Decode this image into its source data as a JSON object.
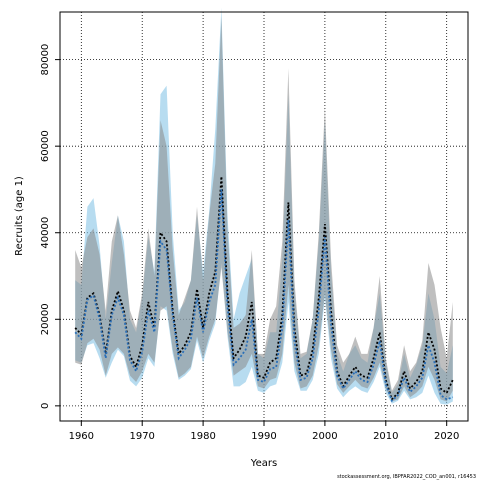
{
  "chart_data": {
    "type": "line",
    "xlabel": "Years",
    "ylabel": "Recruits (age 1)",
    "xlim": [
      1956.5,
      2023.5
    ],
    "ylim": [
      -3500,
      91000
    ],
    "xticks": [
      1960,
      1970,
      1980,
      1990,
      2000,
      2010,
      2020
    ],
    "yticks": [
      0,
      20000,
      40000,
      60000,
      80000
    ],
    "grid": true,
    "footer": "stockassessment.org, IBPFAR2022_COD_an001, r16453",
    "colors": {
      "band_blue": "#87c4e6",
      "band_grey": "#8a8a8a",
      "blue_line": "#2a6fb8",
      "black_line": "#000000"
    },
    "x": [
      1959,
      1960,
      1961,
      1962,
      1963,
      1964,
      1965,
      1966,
      1967,
      1968,
      1969,
      1970,
      1971,
      1972,
      1973,
      1974,
      1975,
      1976,
      1977,
      1978,
      1979,
      1980,
      1981,
      1982,
      1983,
      1984,
      1985,
      1986,
      1987,
      1988,
      1989,
      1990,
      1991,
      1992,
      1993,
      1994,
      1995,
      1996,
      1997,
      1998,
      1999,
      2000,
      2001,
      2002,
      2003,
      2004,
      2005,
      2006,
      2007,
      2008,
      2009,
      2010,
      2011,
      2012,
      2013,
      2014,
      2015,
      2016,
      2017,
      2018,
      2019,
      2020,
      2021
    ],
    "series": [
      {
        "values": [
          18000,
          16500,
          25000,
          26000,
          21000,
          12000,
          22000,
          26500,
          22000,
          11500,
          9000,
          14000,
          24000,
          18000,
          40000,
          38000,
          22000,
          12000,
          14000,
          17000,
          27000,
          18000,
          26000,
          31000,
          53000,
          26000,
          11000,
          13000,
          16000,
          24000,
          7000,
          6500,
          10000,
          11000,
          21000,
          47000,
          18000,
          7000,
          7500,
          13000,
          25000,
          42000,
          22000,
          8000,
          4500,
          7000,
          9000,
          7000,
          6500,
          11000,
          17000,
          6000,
          1500,
          3000,
          8000,
          4000,
          5500,
          8000,
          17000,
          13000,
          4000,
          3000,
          6000
        ]
      },
      {
        "values": [
          17000,
          15500,
          24500,
          25500,
          20000,
          11000,
          21000,
          25000,
          21000,
          10500,
          8000,
          12500,
          22000,
          17000,
          38000,
          36000,
          21000,
          11000,
          13000,
          15500,
          25000,
          17000,
          24000,
          28000,
          50000,
          23000,
          9500,
          11000,
          13000,
          20000,
          6000,
          5500,
          8500,
          9000,
          18000,
          43000,
          15000,
          6000,
          6500,
          11000,
          22000,
          39000,
          19000,
          7000,
          4000,
          6000,
          8000,
          6000,
          5500,
          9500,
          15000,
          5000,
          1200,
          2500,
          6500,
          3200,
          4500,
          6500,
          14000,
          10000,
          2500,
          1500,
          2000
        ]
      }
    ],
    "bands": [
      {
        "name": "blue",
        "lower": [
          10500,
          10000,
          14000,
          14500,
          11000,
          6500,
          10000,
          13000,
          11500,
          5800,
          4500,
          6500,
          11000,
          9000,
          23000,
          22000,
          12000,
          6000,
          7000,
          8500,
          15000,
          10000,
          15000,
          19000,
          33000,
          16000,
          4500,
          4500,
          5500,
          9000,
          3500,
          3000,
          4500,
          5000,
          10000,
          24000,
          8000,
          3500,
          3500,
          6000,
          12000,
          25000,
          11000,
          4000,
          2000,
          3500,
          4500,
          3500,
          3000,
          5500,
          9000,
          3000,
          500,
          1200,
          3500,
          1500,
          2000,
          3000,
          7000,
          3000,
          500,
          300,
          1000
        ],
        "upper": [
          29000,
          28000,
          46000,
          48000,
          37000,
          20000,
          33000,
          44000,
          38000,
          20000,
          17000,
          25000,
          39000,
          31000,
          72000,
          74000,
          40000,
          22000,
          24000,
          29000,
          44000,
          31000,
          45000,
          64000,
          92000,
          44000,
          20000,
          26000,
          30000,
          34000,
          12000,
          11000,
          17000,
          17000,
          34000,
          72000,
          27000,
          11000,
          12000,
          20000,
          38000,
          66000,
          31000,
          12000,
          8000,
          12000,
          14000,
          11000,
          10000,
          18000,
          26000,
          10000,
          3000,
          5000,
          12000,
          6500,
          9500,
          14000,
          26000,
          20000,
          9000,
          7500,
          14000
        ]
      },
      {
        "name": "grey",
        "lower": [
          10000,
          9500,
          14500,
          15500,
          13000,
          7000,
          12000,
          13500,
          12000,
          7000,
          5500,
          8000,
          12000,
          10000,
          22000,
          23000,
          13000,
          6500,
          7500,
          9000,
          16000,
          11000,
          16000,
          20000,
          32000,
          17000,
          7000,
          8000,
          9000,
          12000,
          4500,
          4000,
          6000,
          6500,
          12000,
          28000,
          10000,
          4000,
          4500,
          7000,
          14000,
          26000,
          13000,
          5000,
          3000,
          4500,
          6000,
          4500,
          4000,
          6500,
          10000,
          4000,
          1000,
          1500,
          4500,
          2000,
          3000,
          4500,
          9000,
          6000,
          1500,
          1000,
          3500
        ],
        "upper": [
          36000,
          32000,
          39000,
          41000,
          35000,
          22000,
          38000,
          44000,
          35000,
          22000,
          18000,
          26000,
          41000,
          30000,
          66000,
          60000,
          36000,
          21000,
          25000,
          29000,
          46000,
          29000,
          44000,
          56000,
          90000,
          41000,
          18000,
          19000,
          21000,
          36000,
          12000,
          12000,
          20000,
          23000,
          38000,
          78000,
          29000,
          12000,
          12500,
          20000,
          40000,
          69000,
          34000,
          14000,
          10000,
          12000,
          16000,
          12000,
          12000,
          18000,
          30000,
          11000,
          3500,
          6000,
          14000,
          8000,
          10000,
          15000,
          33000,
          28000,
          18000,
          11000,
          24000
        ]
      }
    ]
  }
}
